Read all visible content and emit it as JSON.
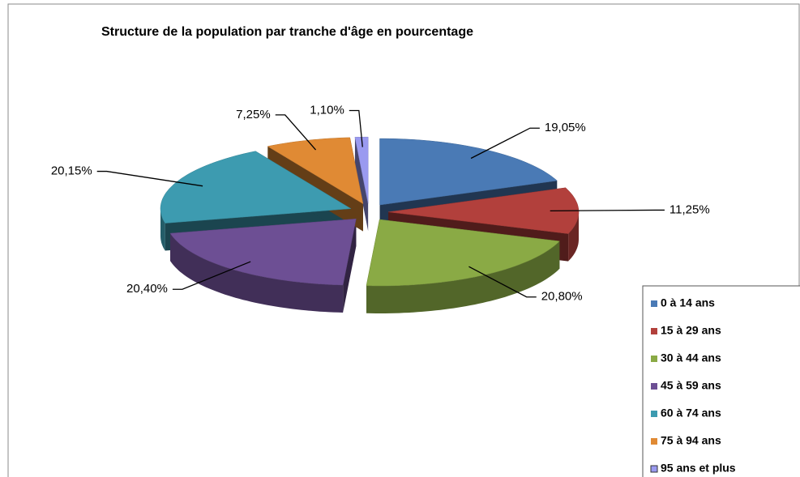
{
  "chart_data": {
    "type": "pie",
    "title": "Structure de la population par tranche d'âge en pourcentage",
    "categories": [
      "0 à 14 ans",
      "15 à 29 ans",
      "30 à 44 ans",
      "45 à 59 ans",
      "60 à 74 ans",
      "75 à 94 ans",
      "95 ans et plus"
    ],
    "values": [
      19.05,
      11.25,
      20.8,
      20.4,
      20.15,
      7.25,
      1.1
    ],
    "value_labels": [
      "19,05%",
      "11,25%",
      "20,80%",
      "20,40%",
      "20,15%",
      "7,25%",
      "1,10%"
    ],
    "colors": [
      "#4a7ab5",
      "#b2403c",
      "#8aaa45",
      "#6d4f94",
      "#3d9bb0",
      "#e08a34",
      "#9a9af0"
    ],
    "legend": "bottom-right"
  }
}
